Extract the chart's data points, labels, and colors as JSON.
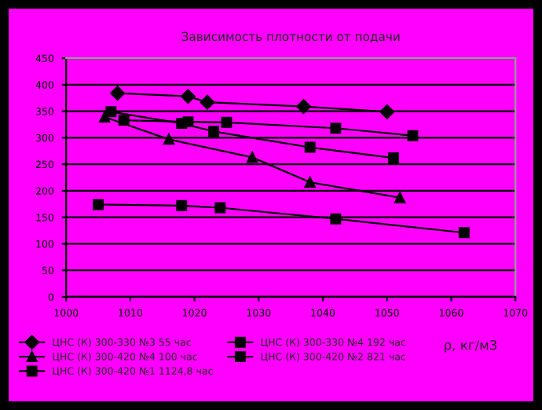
{
  "chart_data": {
    "type": "line",
    "title": "Зависимость плотности от подачи",
    "xlabel": "ρ, кг/м3",
    "xlim": [
      1000,
      1070
    ],
    "xticks": [
      1000,
      1010,
      1020,
      1030,
      1040,
      1050,
      1060,
      1070
    ],
    "ylim": [
      0,
      450
    ],
    "yticks": [
      0,
      50,
      100,
      150,
      200,
      250,
      300,
      350,
      400,
      450
    ],
    "grid": "y",
    "legend": "bottom",
    "line_style": "solid",
    "series": [
      {
        "name": "ЦНС (К) 300-330 №3 55 час",
        "color": "#000000",
        "marker": "diamond",
        "x": [
          1008,
          1019,
          1022,
          1037,
          1050
        ],
        "values": [
          384,
          378,
          367,
          359,
          349
        ]
      },
      {
        "name": "ЦНС (К) 300-330 №4 192 час",
        "color": "#000000",
        "marker": "square",
        "x": [
          1007,
          1018,
          1023,
          1038,
          1051
        ],
        "values": [
          349,
          327,
          312,
          282,
          262
        ]
      },
      {
        "name": "ЦНС (К) 300-420 №4 100 час",
        "color": "#000000",
        "marker": "triangle",
        "x": [
          1006,
          1016,
          1029,
          1038,
          1052
        ],
        "values": [
          339,
          297,
          263,
          216,
          187
        ]
      },
      {
        "name": "ЦНС (К) 300-420 №2 821 час",
        "color": "#000000",
        "marker": "square",
        "x": [
          1009,
          1019,
          1025,
          1042,
          1054
        ],
        "values": [
          333,
          330,
          329,
          318,
          304
        ]
      },
      {
        "name": "ЦНС (К) 300-420 №1 1124,8 час",
        "color": "#000000",
        "marker": "square",
        "x": [
          1005,
          1018,
          1024,
          1042,
          1062
        ],
        "values": [
          174,
          172,
          168,
          147,
          121
        ]
      }
    ]
  }
}
